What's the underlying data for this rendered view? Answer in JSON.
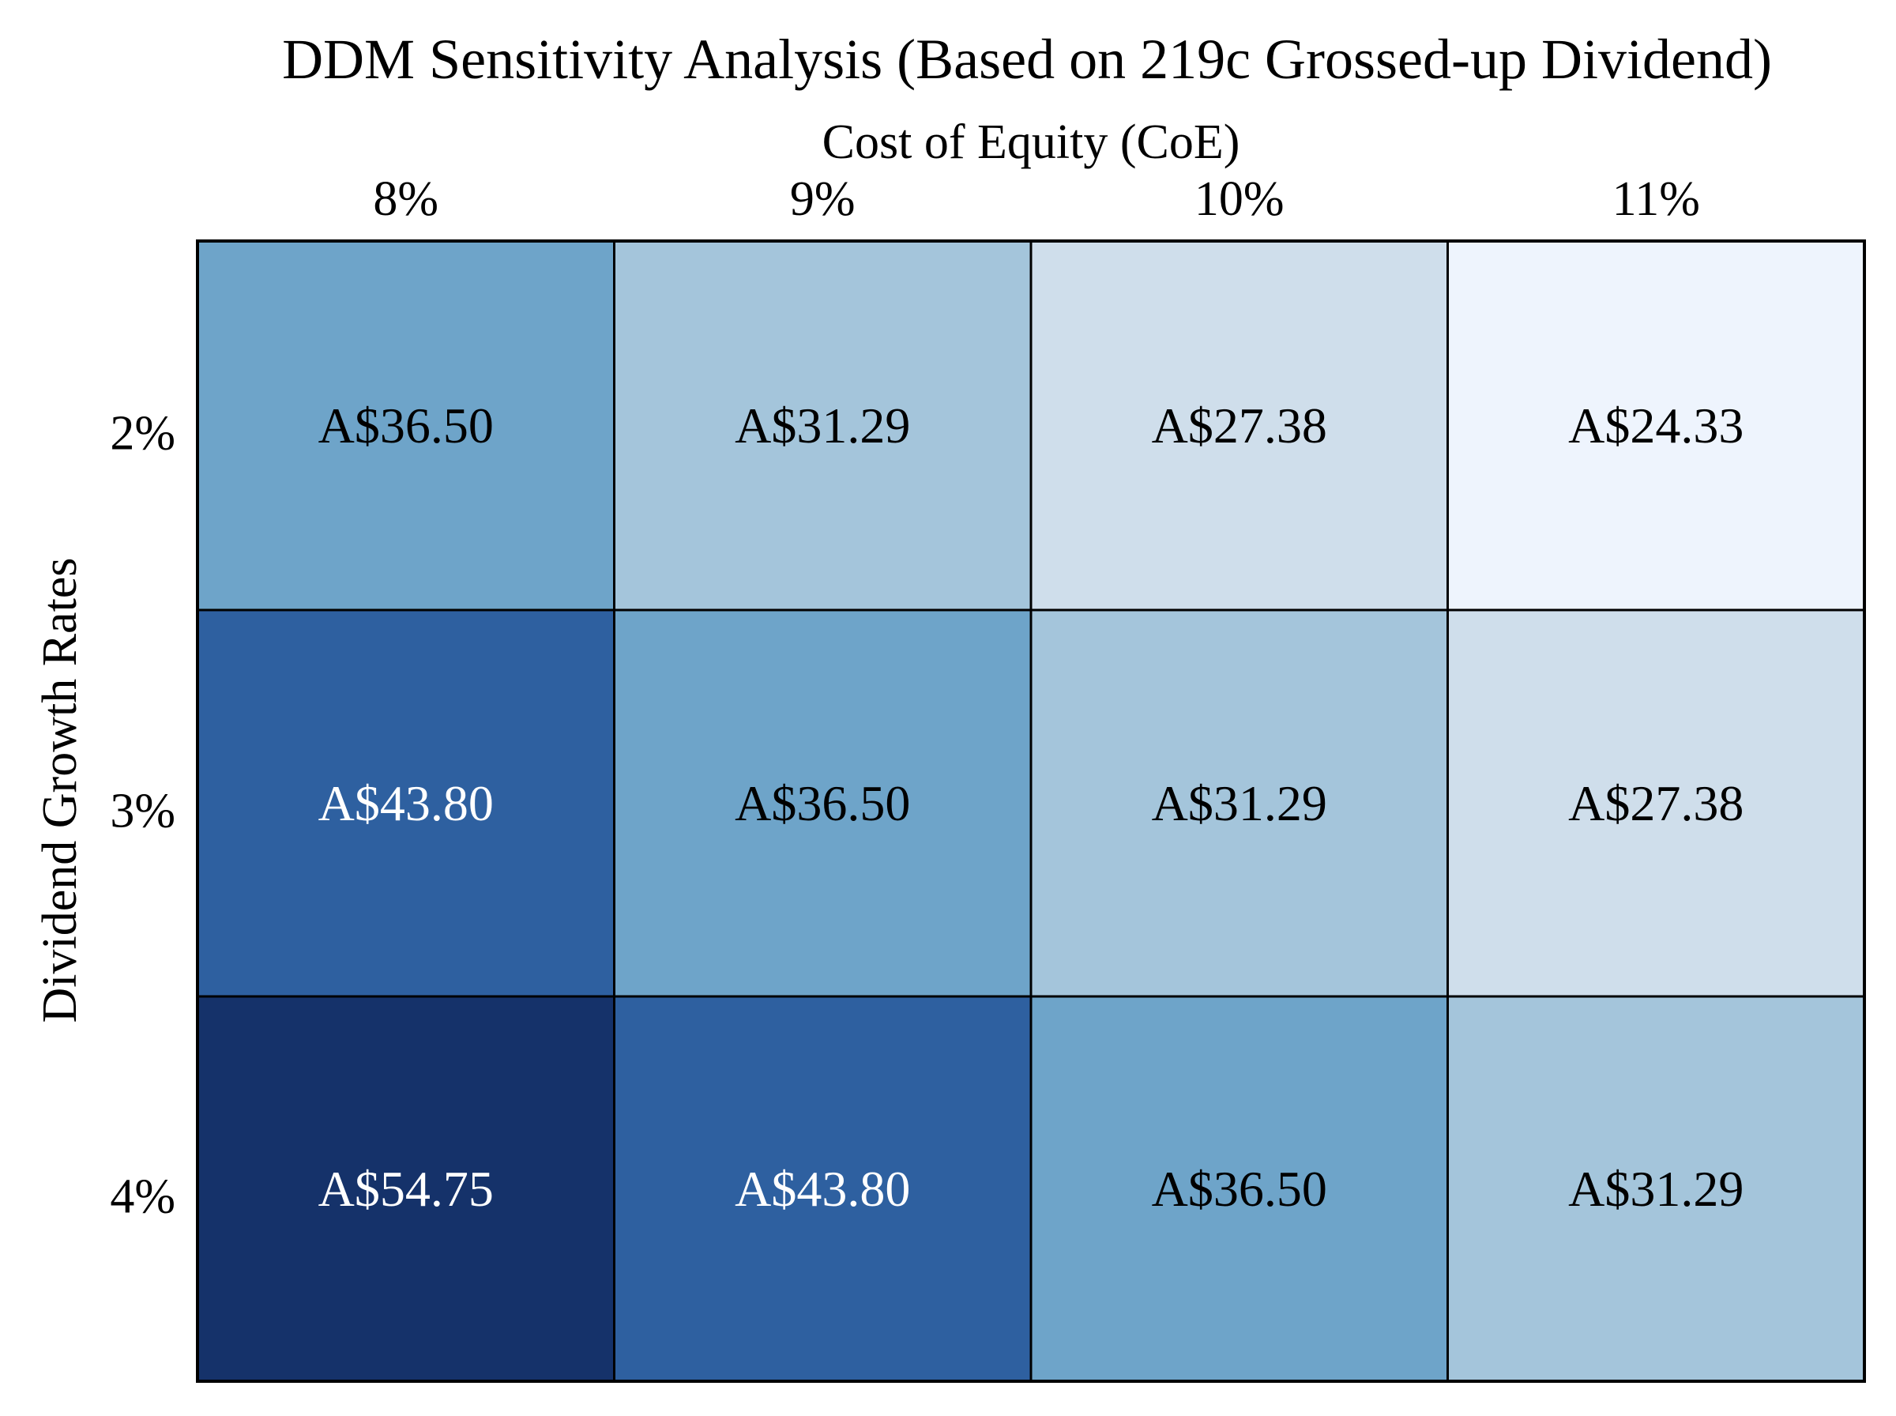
{
  "chart_data": {
    "type": "heatmap",
    "title": "DDM Sensitivity Analysis (Based on 219c Grossed-up Dividend)",
    "xlabel": "Cost of Equity (CoE)",
    "ylabel": "Dividend Growth Rates",
    "x_categories": [
      "8%",
      "9%",
      "10%",
      "11%"
    ],
    "y_categories": [
      "2%",
      "3%",
      "4%"
    ],
    "values": [
      [
        36.5,
        31.29,
        27.38,
        24.33
      ],
      [
        43.8,
        36.5,
        31.29,
        27.38
      ],
      [
        54.75,
        43.8,
        36.5,
        31.29
      ]
    ],
    "labels": [
      [
        "A$36.50",
        "A$31.29",
        "A$27.38",
        "A$24.33"
      ],
      [
        "A$43.80",
        "A$36.50",
        "A$31.29",
        "A$27.38"
      ],
      [
        "A$54.75",
        "A$43.80",
        "A$36.50",
        "A$31.29"
      ]
    ],
    "colormap": "Blues",
    "color_scale": {
      "24.33": "#eef4fd",
      "27.38": "#cfdeeb",
      "31.29": "#a4c5db",
      "36.50": "#6ea4c9",
      "43.80": "#2e60a0",
      "54.75": "#15326a"
    },
    "light_text_color": "#ffffff",
    "dark_text_color": "#000000",
    "border_color": "#000000"
  }
}
